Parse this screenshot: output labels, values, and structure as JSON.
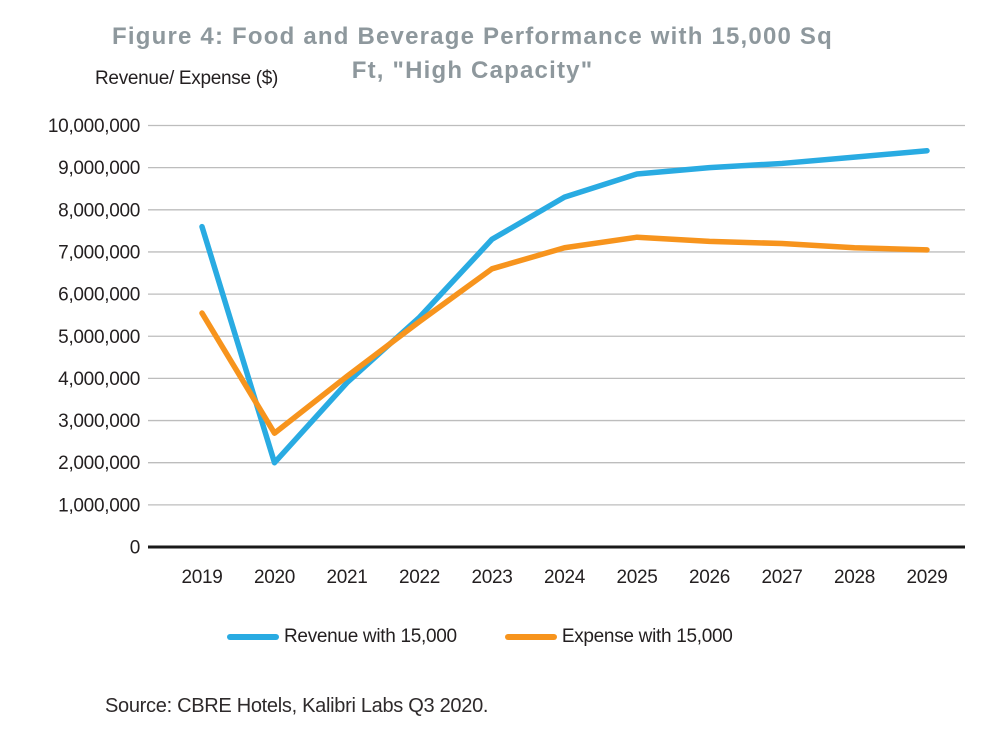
{
  "figure": {
    "title": "Figure 4: Food and Beverage Performance with 15,000 Sq Ft, \"High Capacity\"",
    "title_lines": [
      "Figure 4: Food and Beverage Performance with 15,000 Sq",
      "Ft, \"High Capacity\""
    ],
    "y_axis_title": "Revenue/ Expense ($)",
    "source": "Source: CBRE Hotels, Kalibri Labs Q3 2020."
  },
  "colors": {
    "title_text": "#8E989D",
    "axis_text": "#231F20",
    "gridline": "#BDBDBD",
    "axis_line": "#1A1A1A",
    "revenue_blue": "#29ABE2",
    "expense_orange": "#F7941D",
    "background": "#FFFFFF"
  },
  "chart_data": {
    "type": "line",
    "title": "Figure 4: Food and Beverage Performance with 15,000 Sq Ft, \"High Capacity\"",
    "xlabel": "",
    "ylabel": "Revenue/ Expense ($)",
    "categories": [
      "2019",
      "2020",
      "2021",
      "2022",
      "2023",
      "2024",
      "2025",
      "2026",
      "2027",
      "2028",
      "2029"
    ],
    "series": [
      {
        "name": "Revenue with 15,000",
        "color": "#29ABE2",
        "values": [
          7600000,
          2000000,
          3900000,
          5450000,
          7300000,
          8300000,
          8850000,
          9000000,
          9100000,
          9250000,
          9400000
        ]
      },
      {
        "name": "Expense with 15,000",
        "color": "#F7941D",
        "values": [
          5550000,
          2700000,
          4050000,
          5350000,
          6600000,
          7100000,
          7350000,
          7250000,
          7200000,
          7100000,
          7050000
        ]
      }
    ],
    "ylim": [
      0,
      10000000
    ],
    "y_tick_step": 1000000,
    "y_tick_labels": [
      "0",
      "1,000,000",
      "2,000,000",
      "3,000,000",
      "4,000,000",
      "5,000,000",
      "6,000,000",
      "7,000,000",
      "8,000,000",
      "9,000,000",
      "10,000,000"
    ],
    "grid": "horizontal",
    "legend_position": "bottom"
  }
}
